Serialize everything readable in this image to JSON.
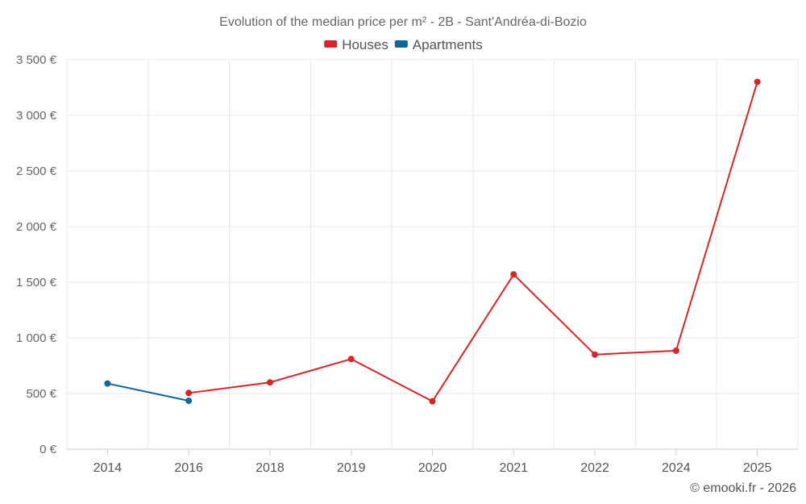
{
  "chart_data": {
    "type": "line",
    "title": "Evolution of the median price per m² - 2B - Sant'Andréa-di-Bozio",
    "categories": [
      "2014",
      "2016",
      "2018",
      "2019",
      "2020",
      "2021",
      "2022",
      "2024",
      "2025"
    ],
    "y_tick_labels": [
      "0 €",
      "500 €",
      "1 000 €",
      "1 500 €",
      "2 000 €",
      "2 500 €",
      "3 000 €",
      "3 500 €"
    ],
    "ylim": [
      0,
      3500
    ],
    "y_step": 500,
    "grid": true,
    "legend_position": "top-center",
    "series": [
      {
        "name": "Houses",
        "color": "#d62728",
        "values": [
          null,
          505,
          600,
          810,
          430,
          1570,
          850,
          885,
          3300
        ]
      },
      {
        "name": "Apartments",
        "color": "#0e6699",
        "values": [
          590,
          435,
          null,
          null,
          null,
          null,
          null,
          null,
          null
        ]
      }
    ],
    "credit": "© emooki.fr - 2026"
  }
}
